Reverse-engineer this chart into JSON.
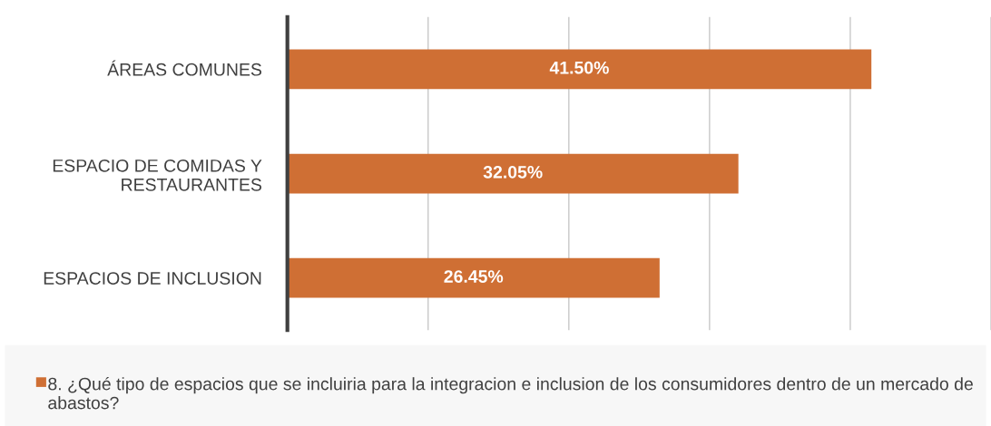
{
  "chart_data": {
    "type": "bar",
    "orientation": "horizontal",
    "categories": [
      "ÁREAS COMUNES",
      "ESPACIO DE COMIDAS Y\nRESTAURANTES",
      "ESPACIOS DE INCLUSION"
    ],
    "series": [
      {
        "name": "8. ¿Qué tipo de espacios que se incluiria para la integracion e inclusion de los consumidores dentro de un mercado de abastos?",
        "color": "#cf6f34",
        "values": [
          41.5,
          32.05,
          26.45
        ],
        "value_labels": [
          "41.50%",
          "32.05%",
          "26.45%"
        ]
      }
    ],
    "xlim": [
      0,
      50
    ],
    "xticks": [
      {
        "value": 0,
        "label": null
      },
      {
        "value": 10,
        "label": null
      },
      {
        "value": 20,
        "label": null
      },
      {
        "value": 30,
        "label": null
      },
      {
        "value": 40,
        "label": null
      },
      {
        "value": 50,
        "label": null
      }
    ],
    "grid": "x",
    "legend": "bottom",
    "tick_labels": "y"
  }
}
